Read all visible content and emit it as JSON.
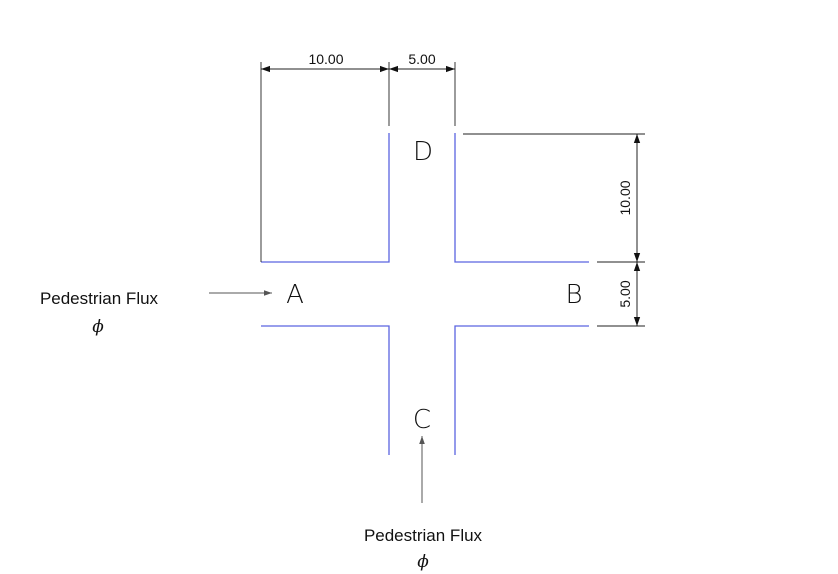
{
  "dimensions": {
    "top_left": "10.00",
    "top_right": "5.00",
    "right_upper": "10.00",
    "right_lower": "5.00"
  },
  "nodes": {
    "a": "A",
    "b": "B",
    "c": "C",
    "d": "D"
  },
  "flux_left": {
    "label": "Pedestrian Flux",
    "symbol": "ϕ"
  },
  "flux_bottom": {
    "label": "Pedestrian Flux",
    "symbol": "ϕ"
  },
  "colors": {
    "walls": "#5b63e0",
    "dimension_lines": "#222222"
  }
}
